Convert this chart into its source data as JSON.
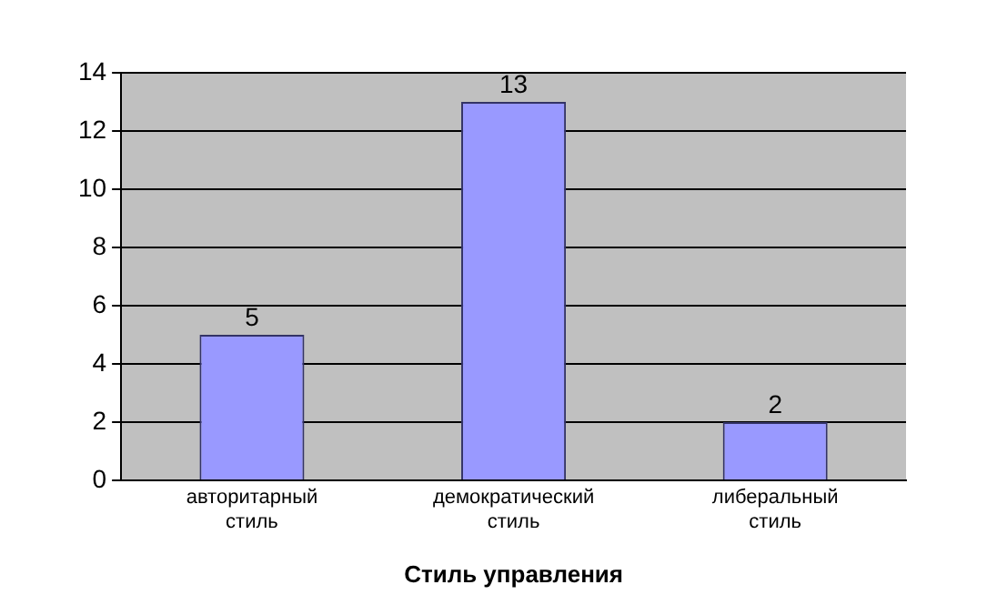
{
  "chart_data": {
    "type": "bar",
    "xlabel": "Стиль управления",
    "categories": [
      "авторитарный стиль",
      "демократический стиль",
      "либеральный стиль"
    ],
    "values": [
      5,
      13,
      2
    ],
    "color": "#9999ff",
    "ylim": [
      0,
      14
    ],
    "yticks": [
      0,
      2,
      4,
      6,
      8,
      10,
      12,
      14
    ],
    "grid": "y",
    "data_labels": true,
    "legend": false
  }
}
